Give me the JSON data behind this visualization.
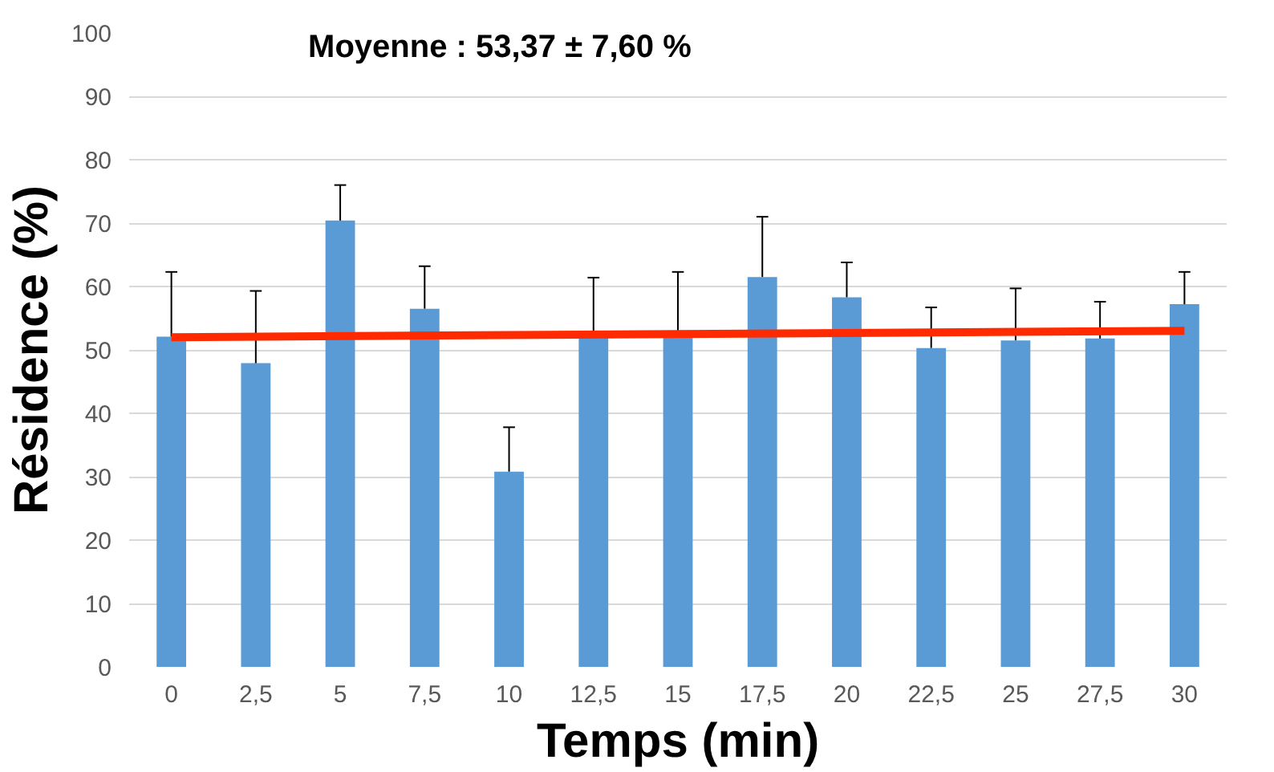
{
  "chart_data": {
    "type": "bar",
    "xlabel": "Temps (min)",
    "ylabel": "Résidence (%)",
    "annotations": [
      "Moyenne : 53,37 ± 7,60 %"
    ],
    "categories": [
      "0",
      "2,5",
      "5",
      "7,5",
      "10",
      "12,5",
      "15",
      "17,5",
      "20",
      "22,5",
      "25",
      "27,5",
      "30"
    ],
    "ylim": [
      0,
      100
    ],
    "yticks": [
      0,
      10,
      20,
      30,
      40,
      50,
      60,
      70,
      80,
      90,
      100
    ],
    "grid": "y",
    "series": [
      {
        "color": "#5b9bd5",
        "values": [
          52.1,
          47.9,
          70.4,
          56.5,
          30.8,
          52.0,
          52.5,
          61.5,
          58.3,
          50.3,
          51.5,
          51.8,
          57.2
        ],
        "errors": [
          [
            52.1,
            62.3
          ],
          [
            47.9,
            59.3
          ],
          [
            70.4,
            76.0
          ],
          [
            56.5,
            63.2
          ],
          [
            30.8,
            37.8
          ],
          [
            52.0,
            61.4
          ],
          [
            52.5,
            62.3
          ],
          [
            61.5,
            71.0
          ],
          [
            58.3,
            63.8
          ],
          [
            50.3,
            56.7
          ],
          [
            51.5,
            59.7
          ],
          [
            51.8,
            57.6
          ],
          [
            57.2,
            62.3
          ]
        ]
      },
      {
        "type": "line",
        "color": "#ff2a00",
        "x": [
          "0",
          "30"
        ],
        "values": [
          52.0,
          53.0
        ]
      }
    ]
  }
}
